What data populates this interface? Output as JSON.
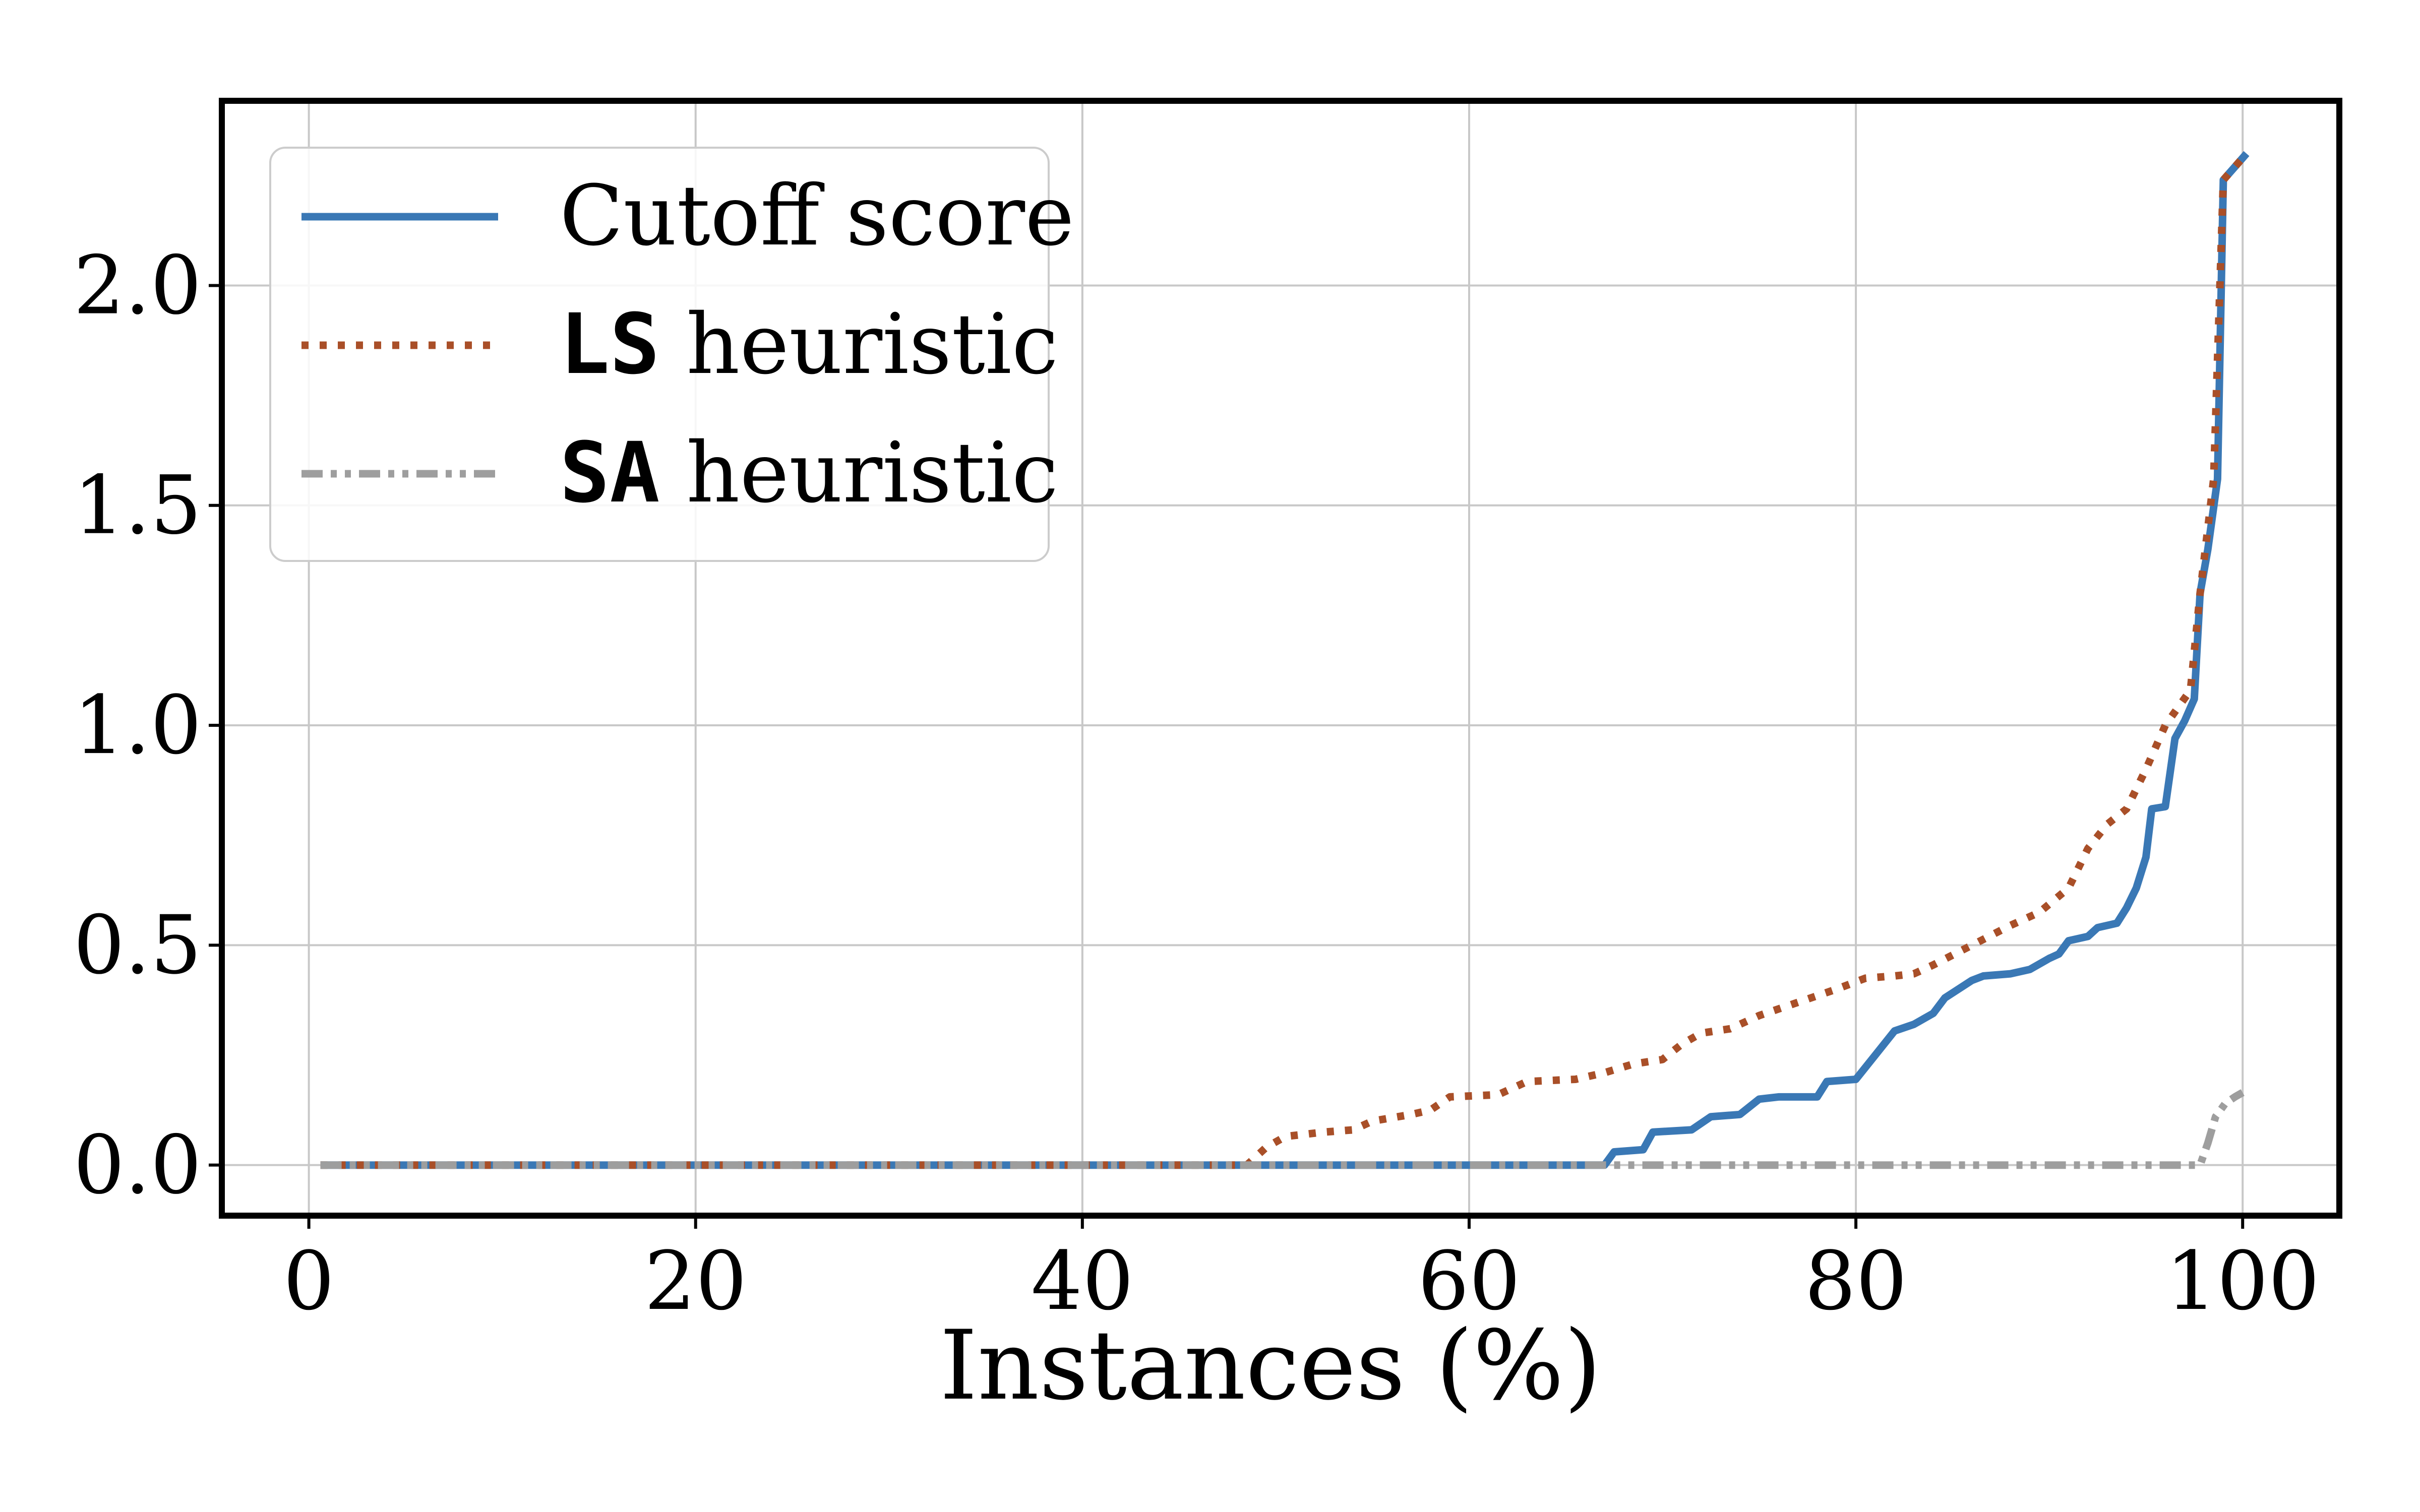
{
  "chart_data": {
    "type": "line",
    "title": "",
    "xlabel": "Instances (%)",
    "ylabel": "",
    "xlim": [
      -4.5,
      105
    ],
    "ylim": [
      -0.115,
      2.42
    ],
    "xticks": [
      0,
      20,
      40,
      60,
      80,
      100
    ],
    "xtick_labels": [
      "0",
      "20",
      "40",
      "60",
      "80",
      "100"
    ],
    "yticks": [
      0.0,
      0.5,
      1.0,
      1.5,
      2.0
    ],
    "ytick_labels": [
      "0.0",
      "0.5",
      "1.0",
      "1.5",
      "2.0"
    ],
    "grid": true,
    "legend_position": "top-left",
    "series": [
      {
        "name": "Cutoff score",
        "legend_mono": "",
        "legend_rest": "Cutoff score",
        "color": "#3a78b5",
        "style": "solid",
        "points": [
          [
            0.6,
            0
          ],
          [
            67,
            0
          ],
          [
            67.5,
            0.03
          ],
          [
            69,
            0.035
          ],
          [
            69.5,
            0.075
          ],
          [
            71.5,
            0.08
          ],
          [
            72.5,
            0.11
          ],
          [
            74,
            0.115
          ],
          [
            75,
            0.15
          ],
          [
            76,
            0.155
          ],
          [
            78,
            0.155
          ],
          [
            78.5,
            0.19
          ],
          [
            80,
            0.195
          ],
          [
            81,
            0.25
          ],
          [
            82,
            0.305
          ],
          [
            83,
            0.32
          ],
          [
            84,
            0.345
          ],
          [
            84.6,
            0.38
          ],
          [
            86,
            0.42
          ],
          [
            86.6,
            0.43
          ],
          [
            88,
            0.435
          ],
          [
            89,
            0.445
          ],
          [
            90,
            0.47
          ],
          [
            90.5,
            0.48
          ],
          [
            91,
            0.51
          ],
          [
            92,
            0.52
          ],
          [
            92.5,
            0.54
          ],
          [
            93.5,
            0.55
          ],
          [
            94,
            0.585
          ],
          [
            94.5,
            0.63
          ],
          [
            95,
            0.7
          ],
          [
            95.3,
            0.81
          ],
          [
            96,
            0.815
          ],
          [
            96.5,
            0.97
          ],
          [
            97,
            1.01
          ],
          [
            97.5,
            1.06
          ],
          [
            97.8,
            1.3
          ],
          [
            98.2,
            1.4
          ],
          [
            98.7,
            1.56
          ],
          [
            99,
            2.24
          ],
          [
            100.2,
            2.3
          ]
        ]
      },
      {
        "name": "LS heuristic",
        "legend_mono": "LS",
        "legend_rest": " heuristic",
        "color": "#a94f28",
        "style": "dotted",
        "points": [
          [
            0.6,
            0
          ],
          [
            48.5,
            0
          ],
          [
            49.5,
            0.04
          ],
          [
            50.5,
            0.065
          ],
          [
            52.5,
            0.075
          ],
          [
            54,
            0.08
          ],
          [
            55,
            0.1
          ],
          [
            57,
            0.115
          ],
          [
            58,
            0.125
          ],
          [
            59,
            0.155
          ],
          [
            61.5,
            0.16
          ],
          [
            63,
            0.19
          ],
          [
            65.5,
            0.195
          ],
          [
            67,
            0.21
          ],
          [
            68.5,
            0.23
          ],
          [
            70,
            0.24
          ],
          [
            71,
            0.275
          ],
          [
            72,
            0.3
          ],
          [
            73.5,
            0.31
          ],
          [
            75,
            0.34
          ],
          [
            77,
            0.37
          ],
          [
            79,
            0.4
          ],
          [
            80.5,
            0.425
          ],
          [
            82,
            0.43
          ],
          [
            83,
            0.435
          ],
          [
            84,
            0.455
          ],
          [
            86,
            0.5
          ],
          [
            88,
            0.545
          ],
          [
            89.5,
            0.575
          ],
          [
            91,
            0.63
          ],
          [
            92,
            0.72
          ],
          [
            93,
            0.775
          ],
          [
            94,
            0.81
          ],
          [
            95,
            0.9
          ],
          [
            96,
            1.0
          ],
          [
            97.3,
            1.08
          ],
          [
            97.8,
            1.3
          ],
          [
            98.5,
            1.56
          ],
          [
            99,
            2.24
          ],
          [
            100.2,
            2.3
          ]
        ]
      },
      {
        "name": "SA heuristic",
        "legend_mono": "SA",
        "legend_rest": " heuristic",
        "color": "#9e9e9e",
        "style": "dashdot",
        "points": [
          [
            0.6,
            0
          ],
          [
            97.8,
            0
          ],
          [
            98.2,
            0.05
          ],
          [
            98.6,
            0.11
          ],
          [
            99.1,
            0.14
          ],
          [
            99.6,
            0.155
          ],
          [
            100,
            0.165
          ]
        ]
      }
    ]
  }
}
